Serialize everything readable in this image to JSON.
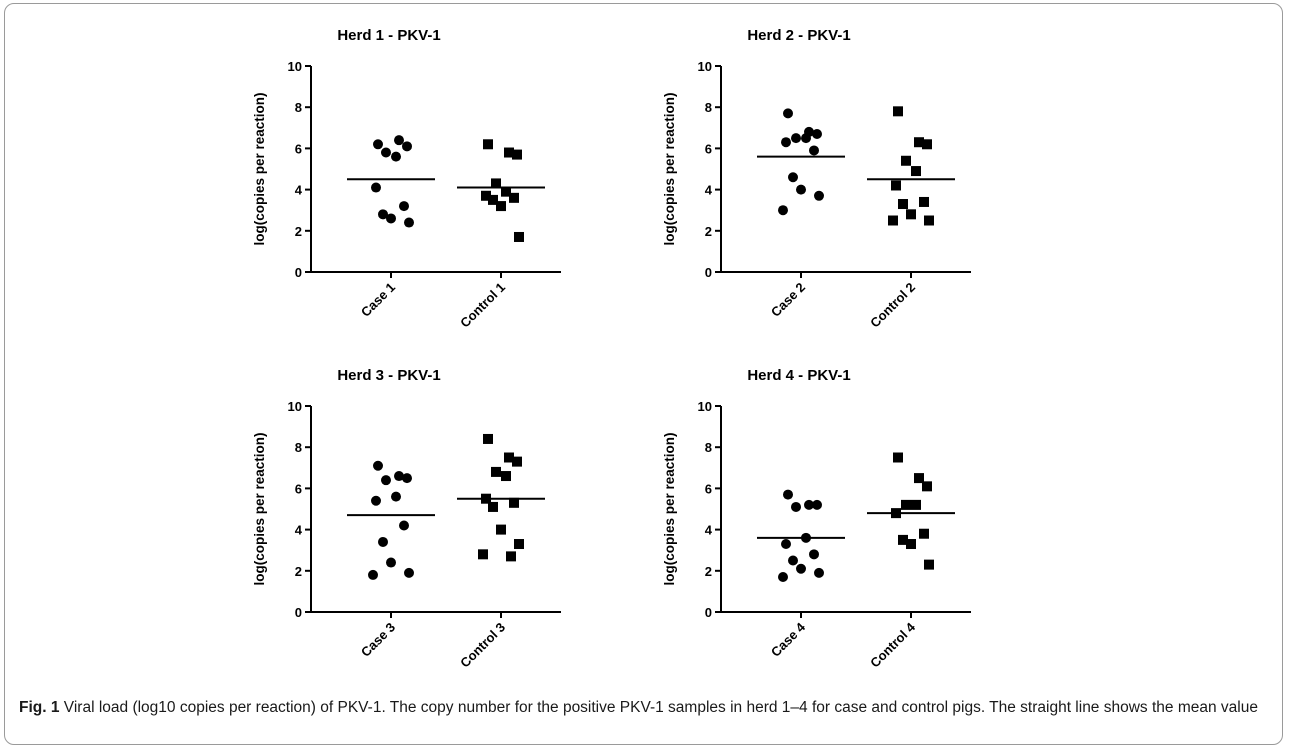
{
  "caption": {
    "label": "Fig. 1",
    "text": "Viral load (log10 copies per reaction) of PKV-1. The copy number for the positive PKV-1 samples in herd 1–4 for case and control pigs. The straight line shows the mean value"
  },
  "style": {
    "marker_color": "#000000",
    "axis_color": "#000000"
  },
  "chart_data": [
    {
      "type": "scatter",
      "title": "Herd 1 - PKV-1",
      "ylabel": "log(copies per reaction)",
      "ylim": [
        0,
        10
      ],
      "yticks": [
        0,
        2,
        4,
        6,
        8,
        10
      ],
      "grid": false,
      "categories": [
        "Case 1",
        "Control 1"
      ],
      "series": [
        {
          "marker": "circle",
          "values": [
            6.2,
            6.4,
            6.1,
            5.8,
            5.6,
            4.1,
            3.2,
            2.8,
            2.6,
            2.4
          ],
          "mean": 4.5
        },
        {
          "marker": "square",
          "values": [
            6.2,
            5.8,
            5.7,
            4.3,
            3.9,
            3.7,
            3.6,
            3.5,
            3.2,
            1.7
          ],
          "mean": 4.1
        }
      ]
    },
    {
      "type": "scatter",
      "title": "Herd 2 - PKV-1",
      "ylabel": "log(copies per reaction)",
      "ylim": [
        0,
        10
      ],
      "yticks": [
        0,
        2,
        4,
        6,
        8,
        10
      ],
      "grid": false,
      "categories": [
        "Case 2",
        "Control 2"
      ],
      "series": [
        {
          "marker": "circle",
          "values": [
            7.7,
            6.8,
            6.7,
            6.5,
            6.5,
            6.3,
            5.9,
            4.6,
            4.0,
            3.7,
            3.0
          ],
          "mean": 5.6
        },
        {
          "marker": "square",
          "values": [
            7.8,
            6.3,
            6.2,
            5.4,
            4.9,
            4.2,
            3.4,
            3.3,
            2.8,
            2.5,
            2.5
          ],
          "mean": 4.5
        }
      ]
    },
    {
      "type": "scatter",
      "title": "Herd 3 - PKV-1",
      "ylabel": "log(copies per reaction)",
      "ylim": [
        0,
        10
      ],
      "yticks": [
        0,
        2,
        4,
        6,
        8,
        10
      ],
      "grid": false,
      "categories": [
        "Case 3",
        "Control 3"
      ],
      "series": [
        {
          "marker": "circle",
          "values": [
            7.1,
            6.6,
            6.5,
            6.4,
            5.6,
            5.4,
            4.2,
            3.4,
            2.4,
            1.9,
            1.8
          ],
          "mean": 4.7
        },
        {
          "marker": "square",
          "values": [
            8.4,
            7.5,
            7.3,
            6.8,
            6.6,
            5.5,
            5.3,
            5.1,
            4.0,
            3.3,
            2.8,
            2.7
          ],
          "mean": 5.5
        }
      ]
    },
    {
      "type": "scatter",
      "title": "Herd 4 - PKV-1",
      "ylabel": "log(copies per reaction)",
      "ylim": [
        0,
        10
      ],
      "yticks": [
        0,
        2,
        4,
        6,
        8,
        10
      ],
      "grid": false,
      "categories": [
        "Case 4",
        "Control 4"
      ],
      "series": [
        {
          "marker": "circle",
          "values": [
            5.7,
            5.2,
            5.2,
            5.1,
            3.6,
            3.3,
            2.8,
            2.5,
            2.1,
            1.9,
            1.7
          ],
          "mean": 3.6
        },
        {
          "marker": "square",
          "values": [
            7.5,
            6.5,
            6.1,
            5.2,
            5.2,
            4.8,
            3.8,
            3.5,
            3.3,
            2.3
          ],
          "mean": 4.8
        }
      ]
    }
  ]
}
